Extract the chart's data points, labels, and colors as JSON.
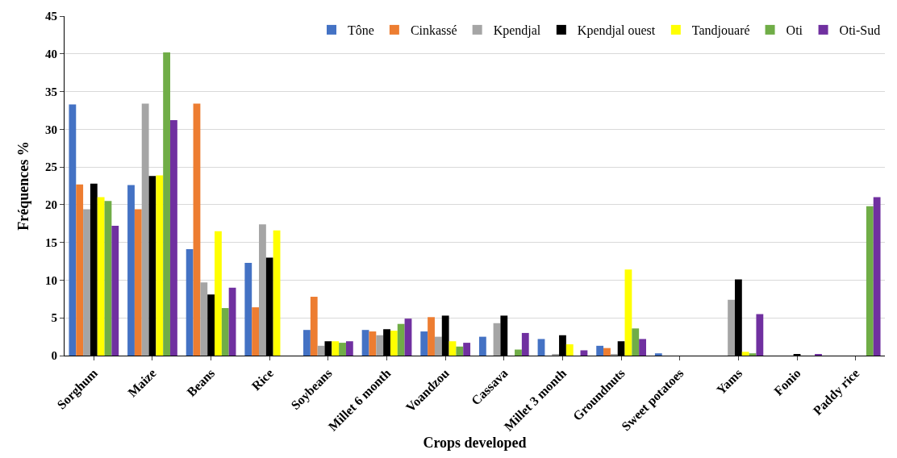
{
  "chart_data": {
    "type": "bar",
    "xlabel": "Crops developed",
    "ylabel": "Fréquences %",
    "categories": [
      "Sorghum",
      "Maize",
      "Beans",
      "Rice",
      "Soybeans",
      "Millet 6 month",
      "Voandzou",
      "Cassava",
      "Millet 3 month",
      "Groundnuts",
      "Sweet potatoes",
      "Yams",
      "Fonio",
      "Paddy rice"
    ],
    "series": [
      {
        "name": "Tône",
        "color": "#4472c4",
        "values": [
          33.3,
          22.6,
          14.1,
          12.3,
          3.4,
          3.4,
          3.2,
          2.5,
          2.2,
          1.3,
          0.3,
          0,
          0,
          0
        ]
      },
      {
        "name": "Cinkassé",
        "color": "#ed7d31",
        "values": [
          22.7,
          19.4,
          33.4,
          6.4,
          7.8,
          3.2,
          5.1,
          0,
          0,
          1.0,
          0,
          0,
          0,
          0
        ]
      },
      {
        "name": "Kpendjal",
        "color": "#a5a5a5",
        "values": [
          19.4,
          33.4,
          9.7,
          17.4,
          1.3,
          2.7,
          2.5,
          4.3,
          0.2,
          0.2,
          0,
          7.4,
          0,
          0
        ]
      },
      {
        "name": "Kpendjal ouest",
        "color": "#000000",
        "values": [
          22.8,
          23.8,
          8.1,
          13.0,
          1.9,
          3.5,
          5.3,
          5.3,
          2.7,
          1.9,
          0,
          10.1,
          0.2,
          0
        ]
      },
      {
        "name": "Tandjouaré",
        "color": "#ffff00",
        "values": [
          21.0,
          23.9,
          16.5,
          16.6,
          1.9,
          3.3,
          1.9,
          0,
          1.5,
          11.4,
          0,
          0.5,
          0,
          0
        ]
      },
      {
        "name": "Oti",
        "color": "#70ad47",
        "values": [
          20.5,
          40.2,
          6.3,
          0,
          1.7,
          4.2,
          1.2,
          0.8,
          0,
          3.6,
          0,
          0.3,
          0,
          19.8
        ]
      },
      {
        "name": "Oti-Sud",
        "color": "#7030a0",
        "values": [
          17.2,
          31.2,
          9.0,
          0,
          1.9,
          4.9,
          1.7,
          3.0,
          0.7,
          2.2,
          0,
          5.5,
          0.2,
          21.0
        ]
      }
    ],
    "ylim": [
      0,
      45
    ],
    "yticks": [
      0,
      5,
      10,
      15,
      20,
      25,
      30,
      35,
      40,
      45
    ],
    "grid": "y",
    "legend": "top right"
  }
}
